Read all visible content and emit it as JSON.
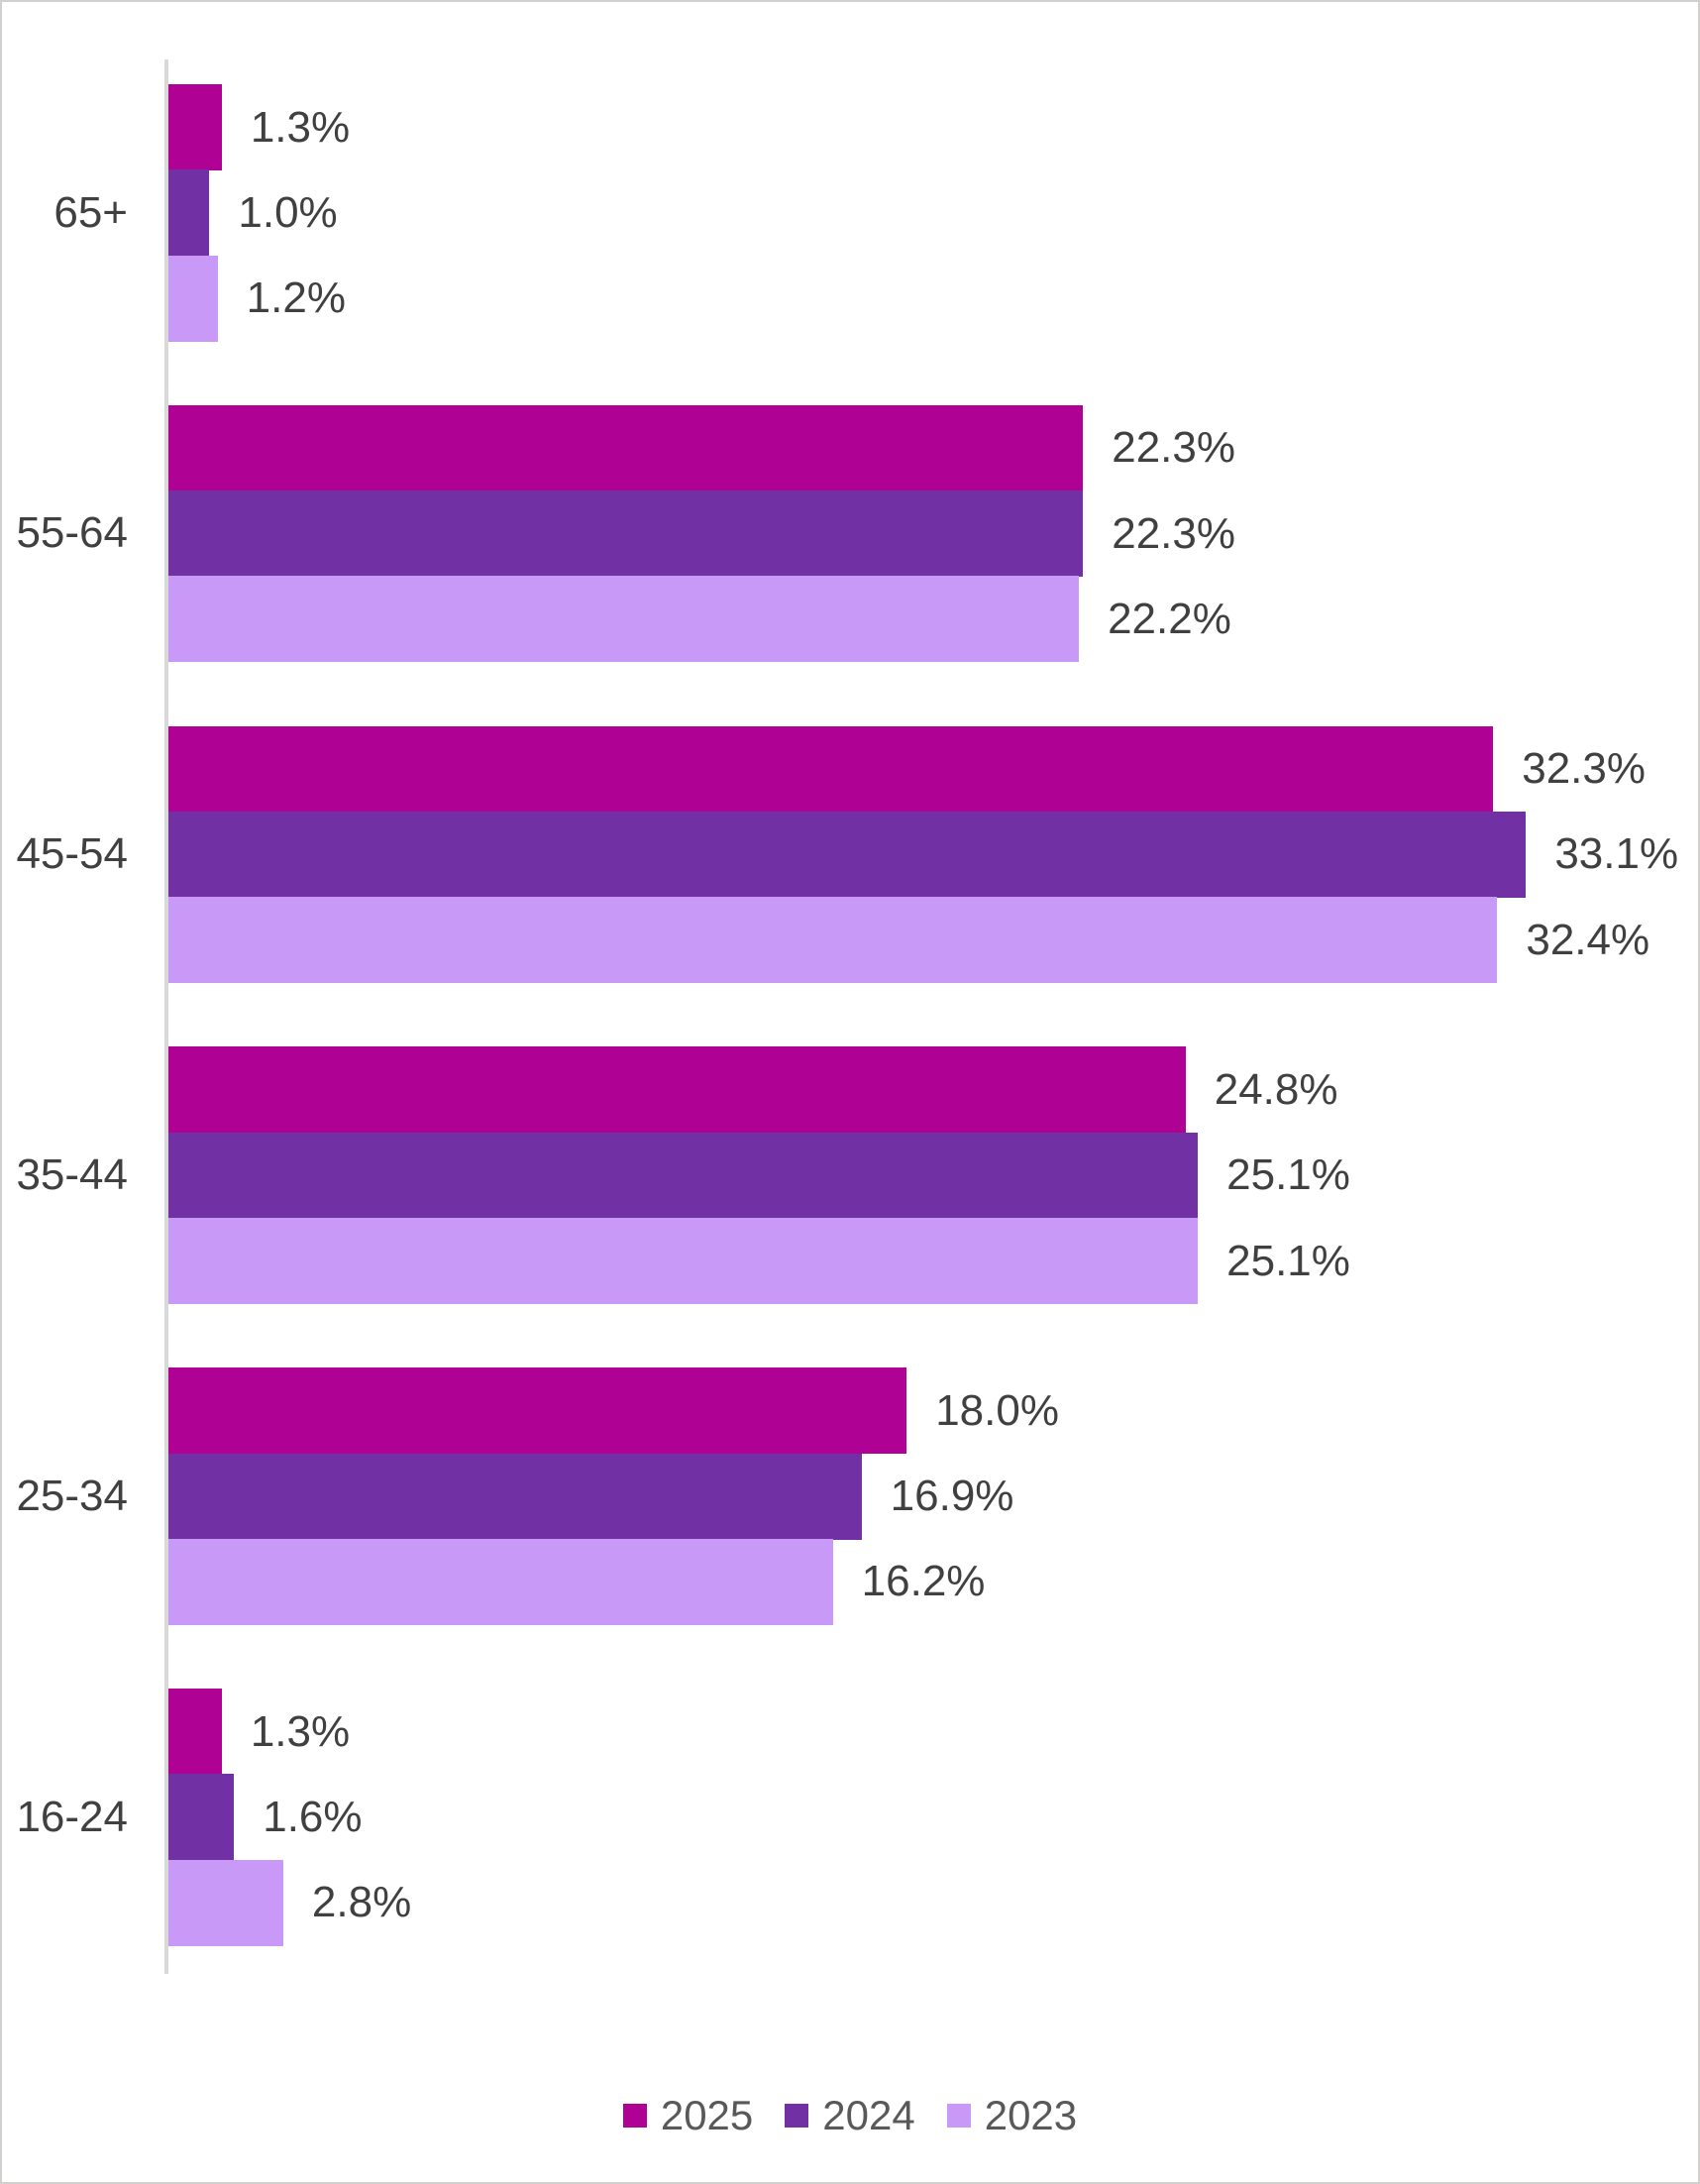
{
  "chart_data": {
    "type": "bar",
    "orientation": "horizontal",
    "title": "",
    "xlabel": "",
    "ylabel": "",
    "xlim": [
      0,
      37
    ],
    "grid": false,
    "legend_position": "bottom",
    "categories": [
      "65+",
      "55-64",
      "45-54",
      "35-44",
      "25-34",
      "16-24"
    ],
    "series": [
      {
        "name": "2025",
        "color": "#B00195",
        "values": [
          1.3,
          22.3,
          32.3,
          24.8,
          18.0,
          1.3
        ]
      },
      {
        "name": "2024",
        "color": "#7130A3",
        "values": [
          1.0,
          22.3,
          33.1,
          25.1,
          16.9,
          1.6
        ]
      },
      {
        "name": "2023",
        "color": "#C999F8",
        "values": [
          1.2,
          22.2,
          32.4,
          25.1,
          16.2,
          2.8
        ]
      }
    ],
    "value_labels": [
      [
        "1.3%",
        "22.3%",
        "32.3%",
        "24.8%",
        "18.0%",
        "1.3%"
      ],
      [
        "1.0%",
        "22.3%",
        "33.1%",
        "25.1%",
        "16.9%",
        "1.6%"
      ],
      [
        "1.2%",
        "22.2%",
        "32.4%",
        "25.1%",
        "16.2%",
        "2.8%"
      ]
    ]
  },
  "colors": {
    "axis_line": "#D9D9D9",
    "canvas_border": "#D2CFCF",
    "data_label_text": "#404040",
    "legend_text": "#595959"
  }
}
